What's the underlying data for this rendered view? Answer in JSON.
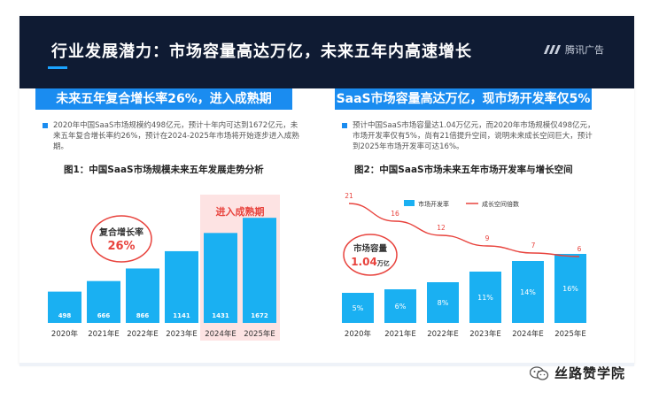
{
  "header": {
    "title": "行业发展潜力：市场容量高达万亿，未来五年内高速增长",
    "logo_text": "腾讯广告"
  },
  "left": {
    "banner": "未来五年复合增长率26%，进入成熟期",
    "desc": "2020年中国SaaS市场规模约498亿元，预计十年内可达到1672亿元，未来五年复合增长率约26%，预计在2024-2025年市场将开始逐步进入成熟期。",
    "chart_title": "图1：中国SaaS市场规模未来五年发展走势分析",
    "annotation_label": "复合增长率",
    "annotation_value": "26%",
    "zone_label": "进入成熟期"
  },
  "right": {
    "banner": "SaaS市场容量高达万亿，现市场开发率仅5%",
    "desc": "预计中国SaaS市场容量达1.04万亿元，而2020年市场规模仅498亿元，市场开发率仅有5%，尚有21倍提升空间，说明未来成长空间巨大，预计到2025年市场开发率可达16%。",
    "chart_title": "图2：中国SaaS市场未来五年市场开发率与增长空间",
    "annotation_label": "市场容量",
    "annotation_value": "1.04",
    "annotation_unit": "万亿",
    "legend_bar": "市场开发率",
    "legend_line": "成长空间倍数"
  },
  "chart_data": [
    {
      "type": "bar",
      "title": "图1：中国SaaS市场规模未来五年发展走势分析",
      "categories": [
        "2020年",
        "2021年E",
        "2022年E",
        "2023年E",
        "2024年E",
        "2025年E"
      ],
      "values": [
        498,
        666,
        866,
        1141,
        1431,
        1672
      ],
      "ylim": [
        0,
        1900
      ],
      "highlight": [
        "2024年E",
        "2025年E"
      ],
      "colors": {
        "bar": "#1ab0f2",
        "highlight_bg": "#fde3e3",
        "annotation": "#e8433d"
      }
    },
    {
      "type": "bar",
      "title": "图2：中国SaaS市场未来五年市场开发率与增长空间",
      "categories": [
        "2020年",
        "2021年E",
        "2022年E",
        "2023年E",
        "2024年E",
        "2025年E"
      ],
      "series": [
        {
          "name": "市场开发率",
          "type": "bar",
          "values": [
            5,
            6,
            8,
            11,
            14,
            16
          ],
          "labels": [
            "5%",
            "6%",
            "8%",
            "11%",
            "14%",
            "16%"
          ]
        },
        {
          "name": "成长空间倍数",
          "type": "line",
          "values": [
            21,
            16,
            12,
            9,
            7,
            6
          ]
        }
      ],
      "ylim_bar": [
        0,
        22
      ],
      "ylim_line": [
        0,
        24
      ],
      "legend": "top",
      "colors": {
        "bar": "#1ab0f2",
        "line": "#e8433d"
      }
    }
  ],
  "watermark": {
    "text": "丝路赞学院"
  },
  "colors": {
    "header_bg": "#0f1b33",
    "accent": "#1a8cf0"
  }
}
